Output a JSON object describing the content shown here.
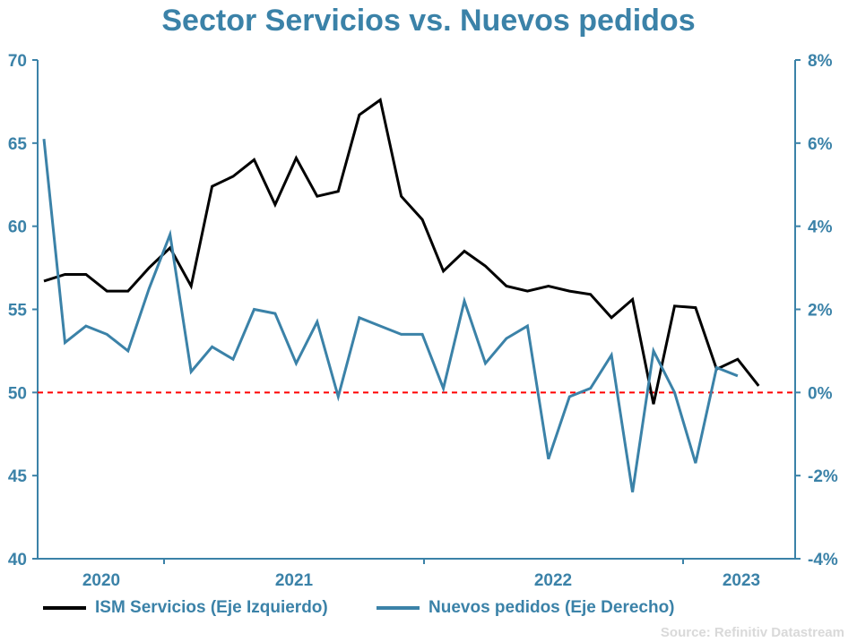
{
  "chart_data": {
    "type": "line",
    "title": "Sector Servicios vs. Nuevos pedidos",
    "xlabel": "",
    "ylabel_left": "",
    "ylabel_right": "",
    "x_tick_labels": [
      "2020",
      "2021",
      "2022",
      "2023"
    ],
    "left_axis": {
      "ylim": [
        40,
        70
      ],
      "ticks": [
        40,
        45,
        50,
        55,
        60,
        65,
        70
      ],
      "tick_labels": [
        "40",
        "45",
        "50",
        "55",
        "60",
        "65",
        "70"
      ]
    },
    "right_axis": {
      "ylim": [
        -4,
        8
      ],
      "ticks": [
        -4,
        -2,
        0,
        2,
        4,
        6,
        8
      ],
      "tick_labels": [
        "-4%",
        "-2%",
        "0%",
        "2%",
        "4%",
        "6%",
        "8%"
      ]
    },
    "reference_line": {
      "axis": "right",
      "value": 0,
      "style": "dashed",
      "color": "#ff0000"
    },
    "grid": false,
    "legend_position": "bottom",
    "series": [
      {
        "name": "ISM Servicios (Eje Izquierdo)",
        "axis": "left",
        "color": "#000000",
        "values": [
          56.7,
          57.1,
          57.1,
          56.1,
          56.1,
          57.5,
          58.7,
          56.4,
          62.4,
          63.0,
          64.0,
          61.3,
          64.1,
          61.8,
          62.1,
          66.7,
          67.6,
          61.8,
          60.4,
          57.3,
          58.5,
          57.6,
          56.4,
          56.1,
          56.4,
          56.1,
          55.9,
          54.5,
          55.6,
          49.3,
          55.2,
          55.1,
          51.4,
          52.0,
          50.4
        ]
      },
      {
        "name": "Nuevos pedidos (Eje Derecho)",
        "axis": "right",
        "color": "#3b82a8",
        "values": [
          6.1,
          1.2,
          1.6,
          1.4,
          1.0,
          2.5,
          3.8,
          0.5,
          1.1,
          0.8,
          2.0,
          1.9,
          0.7,
          1.7,
          -0.1,
          1.8,
          1.6,
          1.4,
          1.4,
          0.1,
          2.2,
          0.7,
          1.3,
          1.6,
          -1.6,
          -0.1,
          0.1,
          0.9,
          -2.4,
          1.0,
          0.0,
          -1.7,
          0.6,
          0.4
        ]
      }
    ],
    "source": "Source: Refinitiv Datastream"
  },
  "colors": {
    "accent": "#3b82a8",
    "reference": "#ff0000",
    "source_text": "#d9d9d9"
  }
}
